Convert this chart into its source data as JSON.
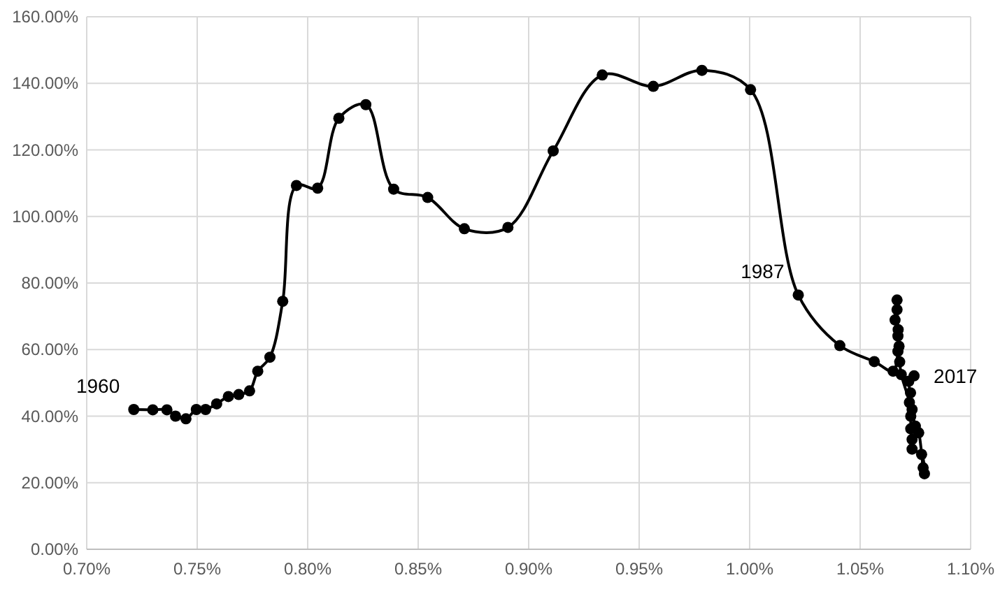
{
  "chart_data": {
    "type": "line",
    "marker": "circle",
    "grid": true,
    "line_style": "solid",
    "x": [
      0.7213,
      0.7299,
      0.7363,
      0.7402,
      0.7449,
      0.7496,
      0.7538,
      0.7588,
      0.7641,
      0.7688,
      0.7737,
      0.7774,
      0.7829,
      0.7887,
      0.7949,
      0.8045,
      0.8141,
      0.8263,
      0.8389,
      0.8543,
      0.8709,
      0.8906,
      0.9111,
      0.9333,
      0.9564,
      0.9784,
      1.0004,
      1.022,
      1.0408,
      1.0564,
      1.0649,
      1.0668,
      1.0671,
      1.0671,
      1.0658,
      1.0667,
      1.0667,
      1.0672,
      1.0676,
      1.0679,
      1.0686,
      1.0697,
      1.0714,
      1.0723,
      1.0729,
      1.0729,
      1.0735,
      1.0735,
      1.075,
      1.0778,
      1.0791,
      1.0785,
      1.0765,
      1.075,
      1.0735,
      1.0728,
      1.072,
      1.0744
    ],
    "series": [
      {
        "color": "#000000",
        "values": [
          42.0,
          41.9,
          41.9,
          40.0,
          39.2,
          42.0,
          42.0,
          43.7,
          45.9,
          46.5,
          47.6,
          53.5,
          57.7,
          74.5,
          109.3,
          108.5,
          129.5,
          133.6,
          108.2,
          105.7,
          96.3,
          96.7,
          119.7,
          142.5,
          139.1,
          143.9,
          138.1,
          76.4,
          61.2,
          56.4,
          53.5,
          null,
          59.5,
          64.1,
          68.9,
          74.9,
          72.0,
          66.0,
          61.0,
          56.3,
          52.5,
          null,
          null,
          44.1,
          40.0,
          36.2,
          33.0,
          30.1,
          null,
          28.5,
          22.7,
          24.5,
          35.0,
          37.0,
          42.0,
          47.0,
          50.5,
          52.1
        ]
      }
    ],
    "xlim": [
      0.7,
      1.1
    ],
    "xticks": [
      {
        "value": 0.7,
        "label": "0.70%"
      },
      {
        "value": 0.75,
        "label": "0.75%"
      },
      {
        "value": 0.8,
        "label": "0.80%"
      },
      {
        "value": 0.85,
        "label": "0.85%"
      },
      {
        "value": 0.9,
        "label": "0.90%"
      },
      {
        "value": 0.95,
        "label": "0.95%"
      },
      {
        "value": 1.0,
        "label": "1.00%"
      },
      {
        "value": 1.05,
        "label": "1.05%"
      },
      {
        "value": 1.1,
        "label": "1.10%"
      }
    ],
    "ylim": [
      0,
      160
    ],
    "yticks": [
      {
        "value": 0,
        "label": "0.00%"
      },
      {
        "value": 20,
        "label": "20.00%"
      },
      {
        "value": 40,
        "label": "40.00%"
      },
      {
        "value": 60,
        "label": "60.00%"
      },
      {
        "value": 80,
        "label": "80.00%"
      },
      {
        "value": 100,
        "label": "100.00%"
      },
      {
        "value": 120,
        "label": "120.00%"
      },
      {
        "value": 140,
        "label": "140.00%"
      },
      {
        "value": 160,
        "label": "160.00%"
      }
    ],
    "annotations": [
      {
        "text": "1960",
        "x": 0.7213,
        "y": 42.0
      },
      {
        "text": "1987",
        "x": 1.022,
        "y": 76.4
      },
      {
        "text": "2017",
        "x": 1.0744,
        "y": 52.1
      }
    ]
  }
}
